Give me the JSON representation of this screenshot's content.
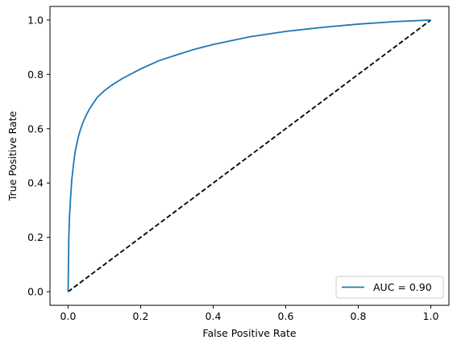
{
  "chart_data": {
    "type": "line",
    "title": "",
    "xlabel": "False Positive Rate",
    "ylabel": "True Positive Rate",
    "xlim": [
      -0.05,
      1.05
    ],
    "ylim": [
      -0.05,
      1.05
    ],
    "xticks": [
      0.0,
      0.2,
      0.4,
      0.6,
      0.8,
      1.0
    ],
    "yticks": [
      0.0,
      0.2,
      0.4,
      0.6,
      0.8,
      1.0
    ],
    "xtick_labels": [
      "0.0",
      "0.2",
      "0.4",
      "0.6",
      "0.8",
      "1.0"
    ],
    "ytick_labels": [
      "0.0",
      "0.2",
      "0.4",
      "0.6",
      "0.8",
      "1.0"
    ],
    "grid": false,
    "legend_position": "lower-right",
    "series": [
      {
        "name": "AUC = 0.90",
        "color": "#1f77b4",
        "style": "solid",
        "x": [
          0.0,
          0.002,
          0.004,
          0.007,
          0.01,
          0.015,
          0.02,
          0.03,
          0.04,
          0.05,
          0.06,
          0.07,
          0.08,
          0.1,
          0.12,
          0.15,
          0.2,
          0.25,
          0.3,
          0.35,
          0.4,
          0.5,
          0.6,
          0.7,
          0.8,
          0.9,
          1.0
        ],
        "y": [
          0.0,
          0.2,
          0.28,
          0.35,
          0.41,
          0.47,
          0.52,
          0.58,
          0.62,
          0.65,
          0.675,
          0.695,
          0.715,
          0.74,
          0.76,
          0.785,
          0.82,
          0.85,
          0.872,
          0.893,
          0.91,
          0.938,
          0.958,
          0.973,
          0.985,
          0.994,
          1.0
        ]
      },
      {
        "name": "",
        "color": "#000000",
        "style": "dashed",
        "x": [
          0.0,
          1.0
        ],
        "y": [
          0.0,
          1.0
        ]
      }
    ]
  }
}
